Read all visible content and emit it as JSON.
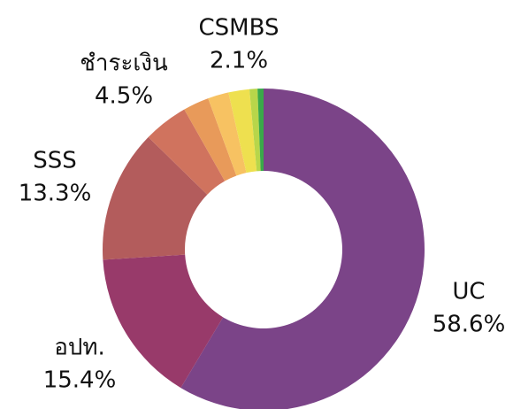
{
  "chart_data": {
    "type": "donut",
    "categories": [
      "UC",
      "อปท.",
      "SSS",
      "ชำระเงิน",
      null,
      null,
      "CSMBS",
      null,
      null
    ],
    "values": [
      58.6,
      15.4,
      13.3,
      4.5,
      2.6,
      2.1,
      2.1,
      0.8,
      0.6
    ],
    "value_labels": [
      "58.6%",
      "15.4%",
      "13.3%",
      "4.5%",
      null,
      null,
      "2.1%",
      null,
      null
    ],
    "colors": [
      "#7b4488",
      "#983a6a",
      "#b35c5c",
      "#d0735e",
      "#e89a5a",
      "#f7c262",
      "#eee04f",
      "#b8d64a",
      "#3aa94a"
    ]
  }
}
